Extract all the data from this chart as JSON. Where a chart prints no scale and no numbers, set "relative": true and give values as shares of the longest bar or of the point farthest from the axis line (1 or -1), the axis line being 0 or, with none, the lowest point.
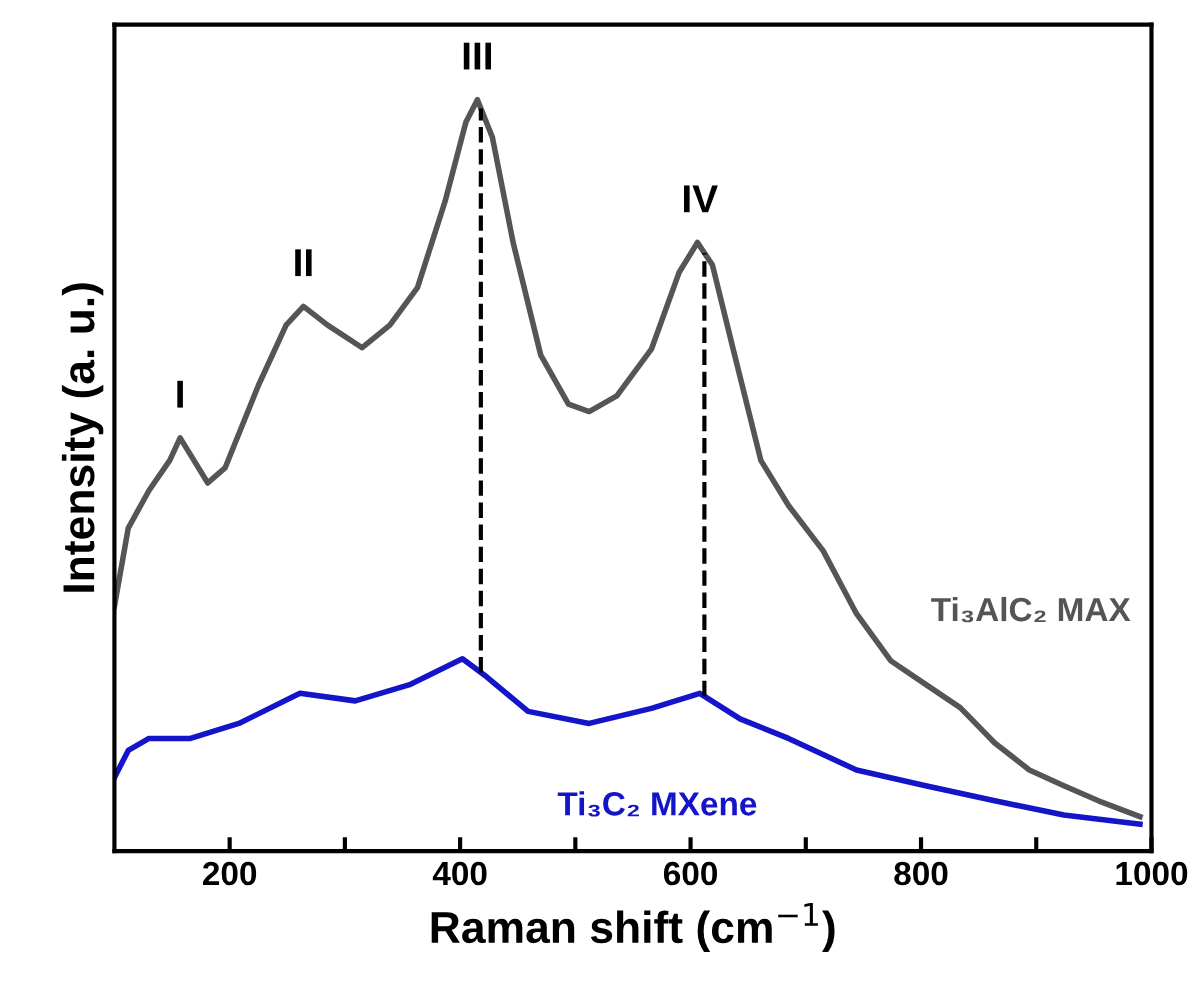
{
  "chart_data": {
    "type": "line",
    "relative": true,
    "xlabel": "Raman shift (cm$^{−1}$)",
    "ylabel": "Intensity (a. u.)",
    "xlim": [
      100,
      1000
    ],
    "xticks": [
      200,
      {
        "value": 300,
        "label": null
      },
      400,
      {
        "value": 500,
        "label": null
      },
      600,
      {
        "value": 700,
        "label": null
      },
      800,
      {
        "value": 900,
        "label": null
      },
      1000
    ],
    "x": [
      100,
      112,
      130,
      148,
      157,
      169,
      181,
      196,
      225,
      249,
      264,
      285,
      315,
      339,
      363,
      387,
      405,
      415,
      428,
      446,
      470,
      494,
      512,
      536,
      566,
      590,
      606,
      619,
      637,
      661,
      685,
      715,
      744,
      774,
      804,
      834,
      864,
      894,
      924,
      954,
      990
    ],
    "series": [
      {
        "name": "Ti₃AlC₂ MAX",
        "color": "#555555",
        "values": [
          0.326,
          0.43,
          0.48,
          0.52,
          0.55,
          0.52,
          0.49,
          0.51,
          0.62,
          0.7,
          0.725,
          0.7,
          0.67,
          0.7,
          0.75,
          0.865,
          0.97,
          1.0,
          0.95,
          0.81,
          0.66,
          0.595,
          0.585,
          0.606,
          0.668,
          0.77,
          0.81,
          0.78,
          0.668,
          0.52,
          0.46,
          0.4,
          0.316,
          0.253,
          0.222,
          0.191,
          0.144,
          0.108,
          0.087,
          0.067,
          0.046
        ]
      },
      {
        "name": "Ti₃C₂ MXene",
        "color": "#1414c8",
        "x": [
          100,
          112,
          130,
          166,
          208,
          261,
          309,
          357,
          402,
          423,
          459,
          512,
          566,
          608,
          643,
          685,
          744,
          804,
          864,
          924,
          990
        ],
        "values": [
          0.098,
          0.134,
          0.15,
          0.15,
          0.17,
          0.21,
          0.2,
          0.222,
          0.256,
          0.232,
          0.186,
          0.17,
          0.19,
          0.21,
          0.176,
          0.15,
          0.108,
          0.087,
          0.067,
          0.048,
          0.036
        ]
      }
    ],
    "ref_lines": [
      {
        "axis": "x",
        "value": 418,
        "line_style": "dashed",
        "color": "#000000"
      },
      {
        "axis": "x",
        "value": 612,
        "line_style": "dashed",
        "color": "#000000"
      }
    ],
    "annotations": [
      {
        "text": "I",
        "x": 157,
        "y": 0.55
      },
      {
        "text": "II",
        "x": 264,
        "y": 0.725
      },
      {
        "text": "III",
        "x": 415,
        "y": 1.0
      },
      {
        "text": "IV",
        "x": 608,
        "y": 0.81
      }
    ],
    "grid": false,
    "legend": false,
    "marker": "none",
    "line_style": "solid"
  }
}
